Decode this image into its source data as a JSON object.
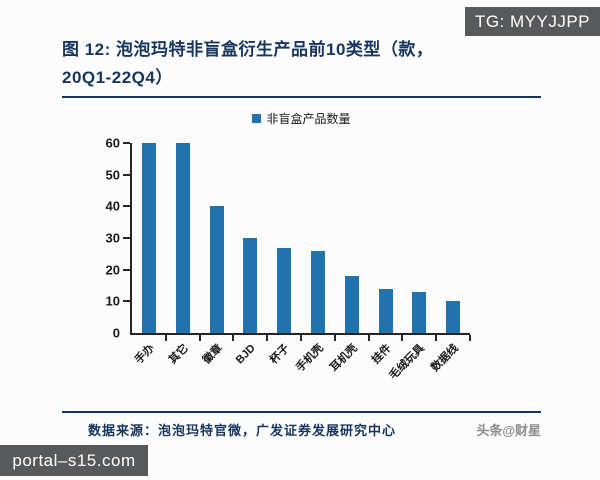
{
  "watermarks": {
    "tg_banner": "TG: MYYJJPP",
    "portal_banner": "portal–s15.com",
    "toutiao": "头条@财星"
  },
  "figure": {
    "title_line1": "图 12: 泡泡玛特非盲盒衍生产品前10类型（款，",
    "title_line2": "20Q1-22Q4）",
    "source": "数据来源：泡泡玛特官微，广发证券发展研究中心"
  },
  "colors": {
    "bar": "#2173ad",
    "title_navy": "#17365d",
    "banner_bg": "#58595b",
    "watermark_text": "#8c8c8c"
  },
  "chart_data": {
    "type": "bar",
    "title": "泡泡玛特非盲盒衍生产品前10类型（款，20Q1-22Q4）",
    "legend": [
      "非盲盒产品数量"
    ],
    "legend_position": "top-center",
    "categories": [
      "手办",
      "其它",
      "徽章",
      "BJD",
      "杯子",
      "手机壳",
      "耳机壳",
      "挂件",
      "毛绒玩具",
      "数据线"
    ],
    "values": [
      60,
      60,
      40,
      30,
      27,
      26,
      18,
      14,
      13,
      10
    ],
    "xlabel": "",
    "ylabel": "",
    "ylim": [
      0,
      60
    ],
    "yticks": [
      0,
      10,
      20,
      30,
      40,
      50,
      60
    ],
    "grid": false
  }
}
